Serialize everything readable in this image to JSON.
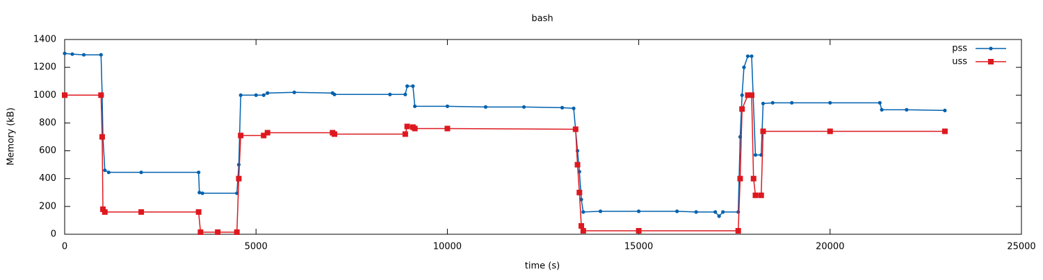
{
  "chart_data": {
    "type": "line",
    "title": "bash",
    "xlabel": "time (s)",
    "ylabel": "Memory (kB)",
    "xlim": [
      0,
      25000
    ],
    "xticks": [
      0,
      5000,
      10000,
      15000,
      20000,
      25000
    ],
    "ylim": [
      0,
      1400
    ],
    "yticks": [
      0,
      200,
      400,
      600,
      800,
      1000,
      1200,
      1400
    ],
    "grid": false,
    "legend": "top right",
    "series": [
      {
        "name": "pss",
        "color": "#0060ad",
        "marker": "circle",
        "x": [
          0,
          200,
          500,
          950,
          980,
          1000,
          1050,
          1150,
          2000,
          3500,
          3520,
          3600,
          4500,
          4550,
          4600,
          5000,
          5200,
          5300,
          6000,
          7000,
          7050,
          8500,
          8900,
          8950,
          9100,
          9150,
          10000,
          11000,
          12000,
          13000,
          13300,
          13400,
          13450,
          13500,
          13550,
          14000,
          15000,
          16000,
          16500,
          17000,
          17100,
          17200,
          17600,
          17650,
          17700,
          17750,
          17850,
          17950,
          18050,
          18200,
          18250,
          18500,
          19000,
          20000,
          21300,
          21350,
          22000,
          23000
        ],
        "values": [
          1300,
          1295,
          1290,
          1290,
          1000,
          700,
          460,
          445,
          445,
          445,
          300,
          295,
          295,
          500,
          1000,
          1000,
          1000,
          1015,
          1020,
          1015,
          1005,
          1005,
          1005,
          1065,
          1065,
          920,
          920,
          915,
          915,
          910,
          905,
          600,
          450,
          250,
          160,
          165,
          165,
          165,
          160,
          160,
          130,
          160,
          160,
          700,
          1000,
          1200,
          1280,
          1280,
          570,
          570,
          940,
          945,
          945,
          945,
          945,
          895,
          895,
          890
        ]
      },
      {
        "name": "uss",
        "color": "#dd181f",
        "marker": "square",
        "x": [
          0,
          950,
          980,
          1000,
          1050,
          2000,
          3500,
          3550,
          4000,
          4500,
          4550,
          4600,
          5200,
          5300,
          7000,
          7050,
          8900,
          8950,
          9100,
          9150,
          10000,
          13350,
          13400,
          13450,
          13500,
          13550,
          15000,
          17600,
          17650,
          17700,
          17850,
          17950,
          18000,
          18050,
          18200,
          18250,
          20000,
          23000
        ],
        "values": [
          1000,
          1000,
          700,
          180,
          160,
          160,
          160,
          15,
          15,
          15,
          400,
          710,
          710,
          730,
          730,
          720,
          720,
          775,
          770,
          760,
          760,
          755,
          500,
          300,
          60,
          25,
          25,
          25,
          400,
          900,
          1000,
          1000,
          400,
          280,
          280,
          740,
          740,
          740
        ]
      }
    ]
  }
}
